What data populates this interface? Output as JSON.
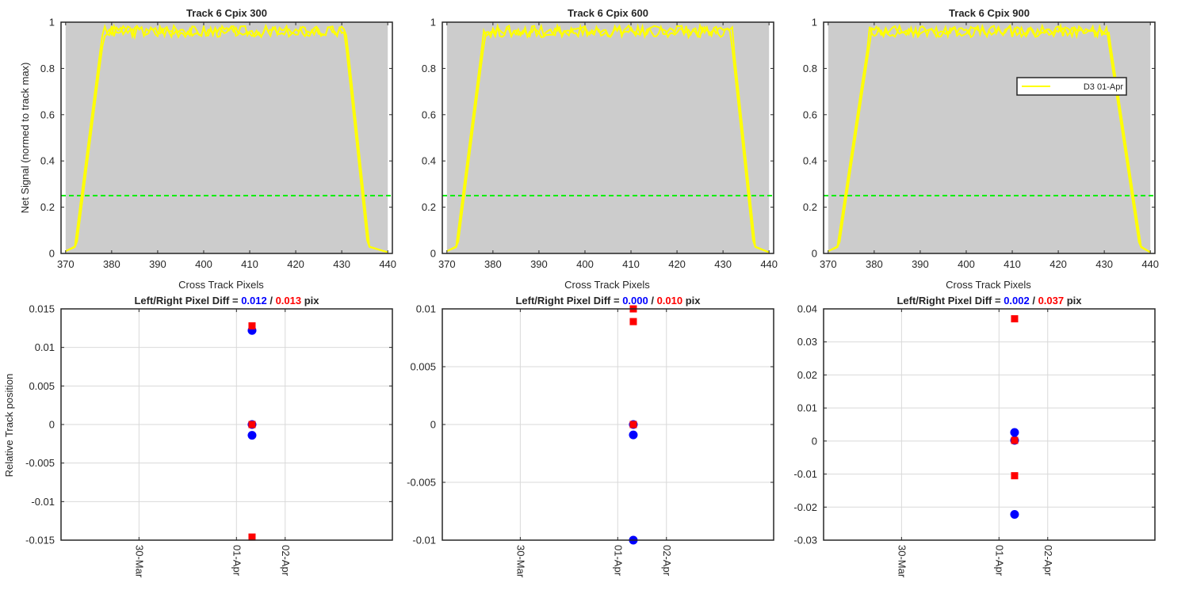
{
  "colors": {
    "signal": "#ffff00",
    "threshold": "#00ee00",
    "plot_bg": "#cccccc",
    "left": "#0000ff",
    "right": "#ff0000",
    "grid": "#d9d9d9",
    "axis": "#262626"
  },
  "figure": {
    "top_ylabel": "Net Signal (normed to track max)",
    "top_xlabel": "Cross Track Pixels",
    "bottom_ylabel": "Relative Track position",
    "title_prefix": "Left/Right Pixel Diff = ",
    "title_sep": " / ",
    "title_suffix": " pix"
  },
  "chart_data": [
    {
      "type": "line",
      "title": "Track 6  Cpix 300",
      "xlabel": "Cross Track Pixels",
      "ylabel": "Net Signal (normed to track max)",
      "xlim": [
        369,
        441
      ],
      "ylim": [
        0,
        1
      ],
      "xticks": [
        370,
        380,
        390,
        400,
        410,
        420,
        430,
        440
      ],
      "xtick_labels": [
        "370",
        "380",
        "390",
        "400",
        "410",
        "420",
        "430",
        "440"
      ],
      "yticks": [
        0,
        0.2,
        0.4,
        0.6,
        0.8,
        1
      ],
      "ytick_labels": [
        "0",
        "0.2",
        "0.4",
        "0.6",
        "0.8",
        "1"
      ],
      "shade": [
        370,
        440
      ],
      "threshold": 0.25,
      "edges": {
        "rise": [
          372,
          378
        ],
        "fall": [
          431,
          436
        ]
      },
      "series": [
        {
          "name": "D3 01-Apr",
          "seed": 3
        }
      ],
      "legend": null
    },
    {
      "type": "line",
      "title": "Track 6  Cpix 600",
      "xlabel": "Cross Track Pixels",
      "ylabel": "",
      "xlim": [
        369,
        441
      ],
      "ylim": [
        0,
        1
      ],
      "xticks": [
        370,
        380,
        390,
        400,
        410,
        420,
        430,
        440
      ],
      "xtick_labels": [
        "370",
        "380",
        "390",
        "400",
        "410",
        "420",
        "430",
        "440"
      ],
      "yticks": [
        0,
        0.2,
        0.4,
        0.6,
        0.8,
        1
      ],
      "ytick_labels": [
        "0",
        "0.2",
        "0.4",
        "0.6",
        "0.8",
        "1"
      ],
      "shade": [
        370,
        440
      ],
      "threshold": 0.25,
      "edges": {
        "rise": [
          372,
          378
        ],
        "fall": [
          432,
          437
        ]
      },
      "series": [
        {
          "name": "D3 01-Apr",
          "seed": 7
        }
      ],
      "legend": null
    },
    {
      "type": "line",
      "title": "Track 6  Cpix 900",
      "xlabel": "Cross Track Pixels",
      "ylabel": "",
      "xlim": [
        369,
        441
      ],
      "ylim": [
        0,
        1
      ],
      "xticks": [
        370,
        380,
        390,
        400,
        410,
        420,
        430,
        440
      ],
      "xtick_labels": [
        "370",
        "380",
        "390",
        "400",
        "410",
        "420",
        "430",
        "440"
      ],
      "yticks": [
        0,
        0.2,
        0.4,
        0.6,
        0.8,
        1
      ],
      "ytick_labels": [
        "0",
        "0.2",
        "0.4",
        "0.6",
        "0.8",
        "1"
      ],
      "shade": [
        370,
        440
      ],
      "threshold": 0.25,
      "edges": {
        "rise": [
          372,
          379
        ],
        "fall": [
          431,
          438
        ]
      },
      "series": [
        {
          "name": "D3 01-Apr",
          "seed": 11
        }
      ],
      "legend": {
        "label": "D3 01-Apr",
        "placement": "right"
      }
    },
    {
      "type": "scatter",
      "title_left": "0.012",
      "title_right": "0.013",
      "xlabel": "",
      "ylabel": "Relative Track position",
      "xlim": [
        -1.3,
        2.1
      ],
      "ylim": [
        -0.015,
        0.015
      ],
      "xticks": [
        -0.5,
        0.5,
        1
      ],
      "xtick_labels": [
        "30-Mar",
        "01-Apr",
        "02-Apr"
      ],
      "yticks": [
        -0.015,
        -0.01,
        -0.005,
        0,
        0.005,
        0.01,
        0.015
      ],
      "ytick_labels": [
        "-0.015",
        "-0.01",
        "-0.005",
        "0",
        "0.005",
        "0.01",
        "0.015"
      ],
      "left_points": [
        {
          "x": 0.66,
          "y": 0.0122
        },
        {
          "x": 0.66,
          "y": 0
        },
        {
          "x": 0.66,
          "y": -0.0014
        }
      ],
      "right_points": [
        {
          "x": 0.66,
          "y": 0.0128
        },
        {
          "x": 0.66,
          "y": 0
        },
        {
          "x": 0.66,
          "y": -0.0146
        }
      ]
    },
    {
      "type": "scatter",
      "title_left": "0.000",
      "title_right": "0.010",
      "xlabel": "",
      "ylabel": "",
      "xlim": [
        -1.3,
        2.1
      ],
      "ylim": [
        -0.01,
        0.01
      ],
      "xticks": [
        -0.5,
        0.5,
        1
      ],
      "xtick_labels": [
        "30-Mar",
        "01-Apr",
        "02-Apr"
      ],
      "yticks": [
        -0.01,
        -0.005,
        0,
        0.005,
        0.01
      ],
      "ytick_labels": [
        "-0.01",
        "-0.005",
        "0",
        "0.005",
        "0.01"
      ],
      "left_points": [
        {
          "x": 0.66,
          "y": 0
        },
        {
          "x": 0.66,
          "y": -0.0009
        },
        {
          "x": 0.66,
          "y": -0.01
        }
      ],
      "right_points": [
        {
          "x": 0.66,
          "y": 0.01
        },
        {
          "x": 0.66,
          "y": 0.0089
        },
        {
          "x": 0.66,
          "y": 0
        }
      ]
    },
    {
      "type": "scatter",
      "title_left": "0.002",
      "title_right": "0.037",
      "xlabel": "",
      "ylabel": "",
      "xlim": [
        -1.3,
        2.1
      ],
      "ylim": [
        -0.03,
        0.04
      ],
      "xticks": [
        -0.5,
        0.5,
        1
      ],
      "xtick_labels": [
        "30-Mar",
        "01-Apr",
        "02-Apr"
      ],
      "yticks": [
        -0.03,
        -0.02,
        -0.01,
        0,
        0.01,
        0.02,
        0.03,
        0.04
      ],
      "ytick_labels": [
        "-0.03",
        "-0.02",
        "-0.01",
        "0",
        "0.01",
        "0.02",
        "0.03",
        "0.04"
      ],
      "left_points": [
        {
          "x": 0.66,
          "y": 0.0026
        },
        {
          "x": 0.66,
          "y": 0.0002
        },
        {
          "x": 0.66,
          "y": -0.0222
        }
      ],
      "right_points": [
        {
          "x": 0.66,
          "y": 0.037
        },
        {
          "x": 0.66,
          "y": 0.0002
        },
        {
          "x": 0.66,
          "y": -0.0105
        }
      ]
    }
  ]
}
